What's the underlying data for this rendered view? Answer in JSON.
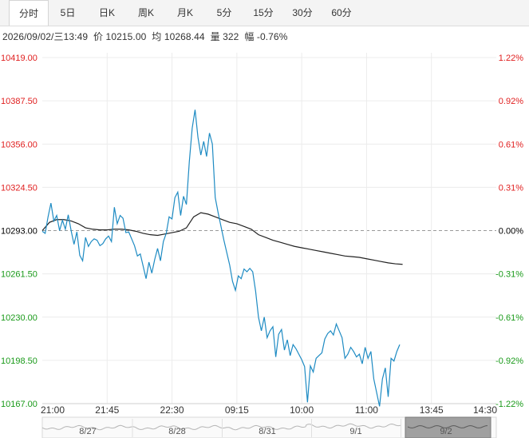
{
  "tabs": [
    {
      "label": "分时",
      "active": true
    },
    {
      "label": "5日",
      "active": false
    },
    {
      "label": "日K",
      "active": false
    },
    {
      "label": "周K",
      "active": false
    },
    {
      "label": "月K",
      "active": false
    },
    {
      "label": "5分",
      "active": false
    },
    {
      "label": "15分",
      "active": false
    },
    {
      "label": "30分",
      "active": false
    },
    {
      "label": "60分",
      "active": false
    }
  ],
  "info": {
    "datetime": "2026/09/02/三13:49",
    "price_label": "价",
    "price": "10215.00",
    "avg_label": "均",
    "avg": "10268.44",
    "vol_label": "量",
    "vol": "322",
    "chg_label": "幅",
    "chg": "-0.76%"
  },
  "colors": {
    "up": "#e02020",
    "down": "#1a9a1a",
    "neutral": "#000000",
    "price_line": "#1e8bc3",
    "avg_line": "#222222"
  },
  "navigator": {
    "labels": [
      "8/27",
      "8/28",
      "8/31",
      "9/1",
      "9/2"
    ]
  },
  "chart_data": {
    "type": "line",
    "title": "",
    "xlabel": "",
    "ylabel": "",
    "prev_close": 10293.0,
    "ylim": [
      10167.0,
      10419.0
    ],
    "y_ticks": [
      "10419.00",
      "10387.50",
      "10356.00",
      "10324.50",
      "10293.00",
      "10261.50",
      "10230.00",
      "10198.50",
      "10167.00"
    ],
    "pct_ticks": [
      "1.22%",
      "0.92%",
      "0.61%",
      "0.31%",
      "0.00%",
      "-0.31%",
      "-0.61%",
      "-0.92%",
      "-1.22%"
    ],
    "x_ticks": [
      "21:00",
      "21:45",
      "22:30",
      "09:15",
      "10:00",
      "11:00",
      "13:45",
      "14:30"
    ],
    "x_tick_index": [
      0,
      45,
      90,
      135,
      180,
      225,
      270,
      315
    ],
    "grid": true,
    "series": [
      {
        "key": "price",
        "x": [
          0,
          2,
          4,
          6,
          8,
          10,
          12,
          14,
          16,
          18,
          20,
          22,
          24,
          26,
          28,
          30,
          32,
          34,
          36,
          38,
          40,
          42,
          44,
          46,
          48,
          50,
          52,
          54,
          56,
          58,
          60,
          62,
          64,
          66,
          68,
          70,
          72,
          74,
          76,
          78,
          80,
          82,
          84,
          86,
          88,
          90,
          92,
          94,
          96,
          98,
          100,
          102,
          104,
          106,
          108,
          110,
          112,
          114,
          116,
          118,
          120,
          122,
          124,
          126,
          128,
          130,
          132,
          134,
          136,
          138,
          140,
          142,
          144,
          146,
          148,
          150,
          152,
          154,
          156,
          158,
          160,
          162,
          164,
          166,
          168,
          170,
          172,
          174,
          176,
          178,
          180,
          182,
          184,
          186,
          188,
          190,
          192,
          194,
          196,
          198,
          200,
          202,
          204,
          206,
          208,
          210,
          212,
          214,
          216,
          218,
          220,
          222,
          224,
          226,
          228,
          230,
          232,
          234,
          236,
          238,
          240,
          242,
          244,
          246,
          248
        ],
        "values": [
          10292.5,
          10291.0,
          10303.0,
          10313.0,
          10300.0,
          10304.0,
          10293.0,
          10300.5,
          10294.0,
          10304.5,
          10293.0,
          10283.0,
          10292.0,
          10275.0,
          10271.0,
          10288.0,
          10281.5,
          10285.0,
          10287.0,
          10286.0,
          10282.0,
          10283.5,
          10287.0,
          10289.0,
          10285.0,
          10310.0,
          10298.0,
          10304.0,
          10302.0,
          10291.5,
          10292.0,
          10287.0,
          10282.0,
          10274.5,
          10276.0,
          10267.0,
          10258.0,
          10270.0,
          10262.0,
          10272.0,
          10280.0,
          10271.0,
          10285.0,
          10291.0,
          10303.0,
          10301.5,
          10317.0,
          10321.0,
          10304.0,
          10318.0,
          10312.0,
          10343.0,
          10367.5,
          10381.0,
          10361.0,
          10348.0,
          10358.0,
          10347.0,
          10364.0,
          10356.0,
          10317.0,
          10306.0,
          10296.0,
          10286.0,
          10277.0,
          10268.0,
          10256.0,
          10249.5,
          10260.0,
          10258.0,
          10265.0,
          10263.0,
          10265.5,
          10263.0,
          10249.0,
          10230.0,
          10220.0,
          10230.0,
          10215.0,
          10220.0,
          10223.0,
          10201.0,
          10217.5,
          10221.0,
          10206.0,
          10213.5,
          10202.0,
          10210.0,
          10207.0,
          10203.0,
          10199.0,
          10194.0,
          10168.0,
          10194.5,
          10190.0,
          10200.0,
          10202.0,
          10204.0,
          10214.0,
          10218.0,
          10220.0,
          10217.0,
          10225.0,
          10220.0,
          10215.0,
          10200.0,
          10203.0,
          10208.0,
          10205.0,
          10201.0,
          10203.0,
          10196.0,
          10208.0,
          10200.0,
          10205.0,
          10185.0,
          10175.0,
          10165.0,
          10185.0,
          10193.0,
          10172.0,
          10200.0,
          10198.0,
          10205.0,
          10210.0
        ]
      },
      {
        "key": "average",
        "x": [
          0,
          5,
          10,
          15,
          20,
          25,
          30,
          35,
          40,
          45,
          50,
          55,
          60,
          65,
          70,
          75,
          80,
          85,
          90,
          95,
          100,
          105,
          110,
          115,
          120,
          125,
          130,
          135,
          140,
          145,
          150,
          155,
          160,
          165,
          170,
          175,
          180,
          185,
          190,
          195,
          200,
          205,
          210,
          215,
          220,
          225,
          230,
          235,
          240,
          245,
          250
        ],
        "values": [
          10293.0,
          10299.0,
          10301.0,
          10301.0,
          10300.0,
          10298.0,
          10295.0,
          10294.0,
          10293.5,
          10293.5,
          10294.0,
          10294.0,
          10293.5,
          10292.5,
          10291.0,
          10290.0,
          10289.5,
          10290.5,
          10291.5,
          10292.5,
          10295.0,
          10303.0,
          10306.0,
          10305.0,
          10303.0,
          10301.0,
          10299.0,
          10298.0,
          10296.0,
          10294.0,
          10290.0,
          10288.0,
          10286.0,
          10284.5,
          10283.0,
          10281.5,
          10280.5,
          10279.5,
          10278.5,
          10277.5,
          10276.5,
          10275.5,
          10274.5,
          10274.0,
          10273.5,
          10272.5,
          10271.5,
          10270.5,
          10269.5,
          10268.8,
          10268.4
        ]
      }
    ]
  }
}
